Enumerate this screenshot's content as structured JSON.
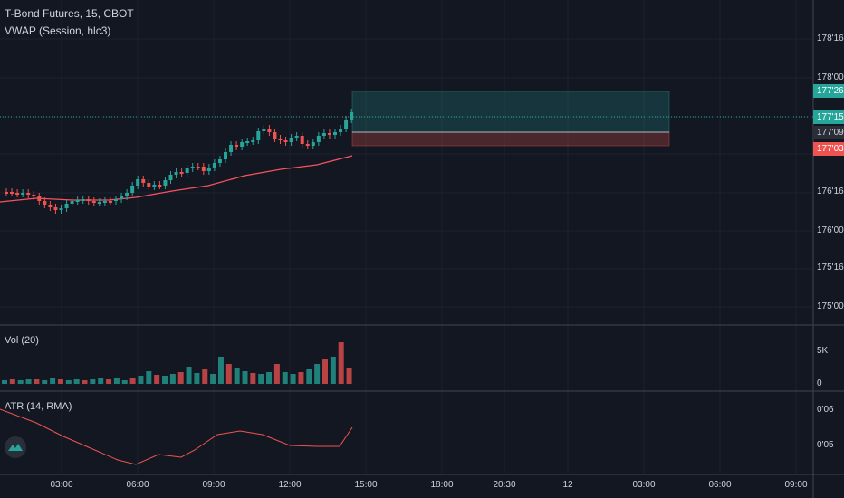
{
  "header": {
    "symbol_line": "T-Bond Futures, 15, CBOT",
    "indicator_line": "VWAP (Session, hlc3)"
  },
  "panes": {
    "volume_label": "Vol (20)",
    "atr_label": "ATR (14, RMA)"
  },
  "price_axis": {
    "ticks": [
      "178'16",
      "178'00",
      "177'15",
      "176'16",
      "176'00",
      "175'16",
      "175'00"
    ],
    "badges": [
      {
        "label": "177'26",
        "color": "#26a69a"
      },
      {
        "label": "177'15",
        "color": "#26a69a"
      },
      {
        "label": "177'09",
        "color": "#2a2e39"
      },
      {
        "label": "177'03",
        "color": "#ef5350"
      }
    ]
  },
  "volume_axis": {
    "ticks": [
      "5K",
      "0"
    ]
  },
  "atr_axis": {
    "ticks": [
      "0'06",
      "0'05"
    ]
  },
  "time_axis": {
    "ticks": [
      "03:00",
      "06:00",
      "09:00",
      "12:00",
      "15:00",
      "18:00",
      "20:30",
      "12",
      "03:00",
      "06:00",
      "09:00"
    ]
  },
  "colors": {
    "background": "#131722",
    "up": "#26a69a",
    "down": "#ef5350",
    "vwap": "#f7525f",
    "grid": "#1e222d",
    "separator": "#434651"
  },
  "icons": {
    "logo": "tradingview-logo-icon"
  }
}
